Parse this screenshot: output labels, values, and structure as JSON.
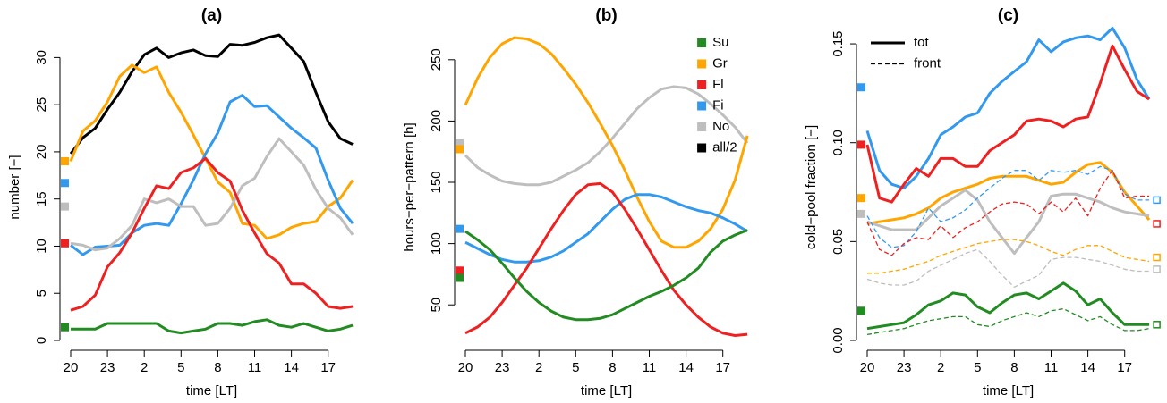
{
  "chart_data": [
    {
      "type": "line",
      "title": "(a)",
      "xlabel": "time [LT]",
      "ylabel": "number [−]",
      "categories": [
        20,
        null,
        null,
        23,
        null,
        null,
        2,
        null,
        null,
        5,
        null,
        null,
        8,
        null,
        null,
        11,
        null,
        null,
        14,
        null,
        null,
        17,
        null,
        null
      ],
      "ylim": [
        0,
        32.5
      ],
      "yticks": [
        0,
        5,
        10,
        15,
        20,
        25,
        30
      ],
      "series": [
        {
          "color": "#000000",
          "values": [
            19.8,
            21.5,
            22.5,
            24.5,
            26.3,
            28.5,
            30.3,
            31,
            30,
            30.5,
            30.8,
            30.2,
            30.1,
            31.4,
            31.3,
            31.6,
            32.1,
            32.4,
            31,
            29.6,
            26.3,
            23.2,
            21.4,
            20.8
          ]
        },
        {
          "color": "#FFA500",
          "marker": 19,
          "values": [
            19,
            22.2,
            23.3,
            25.3,
            28,
            29.2,
            28.4,
            29,
            26.3,
            24.2,
            21.8,
            19.3,
            16.8,
            15.7,
            12.4,
            12.2,
            10.8,
            11.2,
            12,
            12.4,
            12.6,
            14.2,
            15.1,
            17
          ]
        },
        {
          "color": "#3399EE",
          "marker": 16.7,
          "values": [
            10.1,
            9.1,
            9.9,
            10,
            10.1,
            11.4,
            12.2,
            12.4,
            12.2,
            14.5,
            17,
            19.8,
            22,
            25.3,
            26,
            24.8,
            24.9,
            23.7,
            22.5,
            21.5,
            20.4,
            17,
            14,
            12.4
          ]
        },
        {
          "color": "#BEBEBE",
          "marker": 14.2,
          "values": [
            10.3,
            10.1,
            9.6,
            9.8,
            10.8,
            12.2,
            15,
            14.6,
            15,
            14.2,
            14.2,
            12.2,
            12.4,
            14,
            16.4,
            17.2,
            19.5,
            21.4,
            20,
            18.6,
            16,
            14,
            13,
            11.2
          ]
        },
        {
          "color": "#EE2020",
          "marker": 10.3,
          "values": [
            3.2,
            3.6,
            4.8,
            7.8,
            9.3,
            11.4,
            14,
            16.4,
            16.1,
            17.8,
            18.3,
            19.3,
            17.8,
            16.9,
            13.8,
            11.4,
            9.2,
            8.2,
            6,
            6,
            5,
            3.6,
            3.4,
            3.6
          ]
        },
        {
          "color": "#228B22",
          "marker": 1.4,
          "values": [
            1.2,
            1.2,
            1.2,
            1.8,
            1.8,
            1.8,
            1.8,
            1.8,
            1,
            0.8,
            1,
            1.2,
            1.8,
            1.8,
            1.6,
            2,
            2.2,
            1.6,
            1.4,
            1.8,
            1.4,
            1,
            1.2,
            1.6
          ]
        }
      ]
    },
    {
      "type": "line",
      "title": "(b)",
      "xlabel": "time [LT]",
      "ylabel": "hours−per−pattern [h]",
      "categories": [
        20,
        null,
        null,
        23,
        null,
        null,
        2,
        null,
        null,
        5,
        null,
        null,
        8,
        null,
        null,
        11,
        null,
        null,
        14,
        null,
        null,
        17,
        null,
        null
      ],
      "ylim": [
        21,
        271
      ],
      "yticks": [
        50,
        100,
        150,
        200,
        250
      ],
      "legend_position": "topright",
      "legend": [
        {
          "label": "Su",
          "color": "#228B22"
        },
        {
          "label": "Gr",
          "color": "#FFA500"
        },
        {
          "label": "Fl",
          "color": "#EE2020"
        },
        {
          "label": "Fi",
          "color": "#3399EE"
        },
        {
          "label": "No",
          "color": "#BEBEBE"
        },
        {
          "label": "all/2",
          "color": "#000000"
        }
      ],
      "series": [
        {
          "color": "#BEBEBE",
          "marker": 182,
          "values": [
            172,
            162,
            156,
            151,
            149,
            148,
            148,
            150,
            155,
            160,
            166,
            175,
            186,
            198,
            210,
            219,
            226,
            228,
            227,
            222,
            214,
            205,
            195,
            182
          ]
        },
        {
          "color": "#FFA500",
          "marker": 177,
          "values": [
            213,
            235,
            252,
            263,
            268,
            267,
            263,
            255,
            243,
            230,
            215,
            198,
            180,
            160,
            138,
            118,
            102,
            97,
            97,
            102,
            112,
            128,
            152,
            188
          ]
        },
        {
          "color": "#3399EE",
          "marker": 112,
          "values": [
            101,
            96,
            91,
            87,
            85,
            85,
            86,
            89,
            94,
            101,
            108,
            118,
            128,
            136,
            140,
            140,
            138,
            134,
            130,
            127,
            125,
            121,
            116,
            110
          ]
        },
        {
          "color": "#EE2020",
          "marker": 78,
          "values": [
            27,
            32,
            40,
            52,
            66,
            80,
            96,
            112,
            127,
            140,
            148,
            149,
            142,
            128,
            112,
            95,
            78,
            62,
            50,
            40,
            32,
            27,
            25,
            26
          ]
        },
        {
          "color": "#228B22",
          "marker": 72,
          "values": [
            110,
            103,
            95,
            84,
            72,
            61,
            52,
            45,
            40,
            38,
            38,
            39,
            42,
            47,
            52,
            57,
            61,
            66,
            72,
            80,
            93,
            102,
            107,
            111
          ]
        }
      ]
    },
    {
      "type": "line",
      "title": "(c)",
      "xlabel": "time [LT]",
      "ylabel": "cold−pool fraction [−]",
      "categories": [
        20,
        null,
        null,
        23,
        null,
        null,
        2,
        null,
        null,
        5,
        null,
        null,
        8,
        null,
        null,
        11,
        null,
        null,
        14,
        null,
        null,
        17,
        null,
        null
      ],
      "ylim": [
        0,
        0.155
      ],
      "yticks": [
        {
          "value": 0,
          "label": "0.00"
        },
        0.05,
        {
          "value": 0.1,
          "label": "0.10"
        },
        0.15
      ],
      "legend_position": "topleft",
      "legend": [
        {
          "label": "tot",
          "dashed": false
        },
        {
          "label": "front",
          "dashed": true
        }
      ],
      "series": [
        {
          "color": "#3399EE",
          "dashed": false,
          "marker": 0.128,
          "values": [
            0.106,
            0.086,
            0.079,
            0.077,
            0.083,
            0.092,
            0.104,
            0.108,
            0.113,
            0.115,
            0.125,
            0.131,
            0.136,
            0.141,
            0.152,
            0.146,
            0.151,
            0.153,
            0.154,
            0.152,
            0.158,
            0.148,
            0.132,
            0.122
          ]
        },
        {
          "color": "#EE2020",
          "dashed": false,
          "marker": 0.099,
          "values": [
            0.099,
            0.072,
            0.07,
            0.079,
            0.087,
            0.083,
            0.092,
            0.092,
            0.088,
            0.088,
            0.096,
            0.1,
            0.104,
            0.111,
            0.112,
            0.111,
            0.108,
            0.112,
            0.113,
            0.13,
            0.149,
            0.137,
            0.126,
            0.122
          ]
        },
        {
          "color": "#FFA500",
          "dashed": false,
          "marker": 0.072,
          "values": [
            0.059,
            0.06,
            0.061,
            0.062,
            0.064,
            0.067,
            0.072,
            0.075,
            0.077,
            0.079,
            0.082,
            0.083,
            0.083,
            0.083,
            0.081,
            0.079,
            0.08,
            0.085,
            0.089,
            0.09,
            0.085,
            0.075,
            0.068,
            0.061
          ]
        },
        {
          "color": "#BEBEBE",
          "dashed": false,
          "marker": 0.064,
          "values": [
            0.06,
            0.058,
            0.056,
            0.056,
            0.056,
            0.062,
            0.068,
            0.072,
            0.076,
            0.071,
            0.06,
            0.052,
            0.044,
            0.052,
            0.06,
            0.073,
            0.074,
            0.074,
            0.072,
            0.07,
            0.067,
            0.065,
            0.064,
            0.063
          ]
        },
        {
          "color": "#228B22",
          "dashed": false,
          "marker": 0.015,
          "values": [
            0.006,
            0.007,
            0.008,
            0.009,
            0.013,
            0.018,
            0.02,
            0.024,
            0.023,
            0.017,
            0.014,
            0.019,
            0.023,
            0.024,
            0.021,
            0.025,
            0.029,
            0.025,
            0.018,
            0.021,
            0.014,
            0.008,
            0.008,
            0.008
          ]
        },
        {
          "color": "#3399EE",
          "dashed": true,
          "marker_end": 0.071,
          "values": [
            0.063,
            0.052,
            0.047,
            0.048,
            0.055,
            0.067,
            0.06,
            0.062,
            0.066,
            0.072,
            0.077,
            0.082,
            0.086,
            0.086,
            0.081,
            0.086,
            0.085,
            0.086,
            0.084,
            0.088,
            0.086,
            0.074,
            0.071,
            0.071
          ]
        },
        {
          "color": "#EE2020",
          "dashed": true,
          "marker_end": 0.059,
          "values": [
            0.06,
            0.046,
            0.043,
            0.049,
            0.052,
            0.051,
            0.058,
            0.052,
            0.057,
            0.06,
            0.065,
            0.069,
            0.07,
            0.069,
            0.064,
            0.07,
            0.065,
            0.072,
            0.063,
            0.077,
            0.086,
            0.072,
            0.073,
            0.073
          ]
        },
        {
          "color": "#FFA500",
          "dashed": true,
          "marker_end": 0.042,
          "values": [
            0.034,
            0.034,
            0.035,
            0.036,
            0.038,
            0.04,
            0.043,
            0.045,
            0.047,
            0.049,
            0.05,
            0.051,
            0.051,
            0.05,
            0.048,
            0.045,
            0.043,
            0.046,
            0.048,
            0.048,
            0.045,
            0.042,
            0.041,
            0.04
          ]
        },
        {
          "color": "#BEBEBE",
          "dashed": true,
          "marker_end": 0.036,
          "values": [
            0.031,
            0.029,
            0.028,
            0.028,
            0.03,
            0.035,
            0.038,
            0.041,
            0.044,
            0.046,
            0.04,
            0.033,
            0.027,
            0.03,
            0.033,
            0.041,
            0.042,
            0.042,
            0.041,
            0.04,
            0.038,
            0.036,
            0.035,
            0.035
          ]
        },
        {
          "color": "#228B22",
          "dashed": true,
          "marker_end": 0.008,
          "values": [
            0.003,
            0.004,
            0.005,
            0.006,
            0.008,
            0.01,
            0.011,
            0.012,
            0.012,
            0.008,
            0.007,
            0.01,
            0.012,
            0.014,
            0.012,
            0.015,
            0.016,
            0.013,
            0.01,
            0.012,
            0.008,
            0.005,
            0.005,
            0.006
          ]
        }
      ]
    }
  ]
}
